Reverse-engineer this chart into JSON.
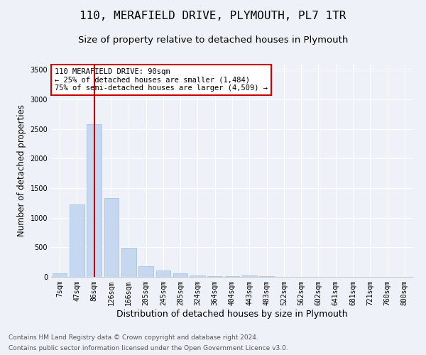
{
  "title_line1": "110, MERAFIELD DRIVE, PLYMOUTH, PL7 1TR",
  "title_line2": "Size of property relative to detached houses in Plymouth",
  "xlabel": "Distribution of detached houses by size in Plymouth",
  "ylabel": "Number of detached properties",
  "categories": [
    "7sqm",
    "47sqm",
    "86sqm",
    "126sqm",
    "166sqm",
    "205sqm",
    "245sqm",
    "285sqm",
    "324sqm",
    "364sqm",
    "404sqm",
    "443sqm",
    "483sqm",
    "522sqm",
    "562sqm",
    "602sqm",
    "641sqm",
    "681sqm",
    "721sqm",
    "760sqm",
    "800sqm"
  ],
  "values": [
    60,
    1230,
    2580,
    1330,
    495,
    175,
    110,
    55,
    25,
    15,
    12,
    20,
    18,
    0,
    0,
    0,
    0,
    0,
    0,
    0,
    0
  ],
  "bar_color": "#c5d8f0",
  "bar_edge_color": "#9abcd8",
  "vline_x": 2,
  "vline_color": "#cc0000",
  "annotation_text": "110 MERAFIELD DRIVE: 90sqm\n← 25% of detached houses are smaller (1,484)\n75% of semi-detached houses are larger (4,509) →",
  "annotation_box_color": "#ffffff",
  "annotation_box_edge_color": "#cc0000",
  "ylim": [
    0,
    3600
  ],
  "yticks": [
    0,
    500,
    1000,
    1500,
    2000,
    2500,
    3000,
    3500
  ],
  "background_color": "#eef2f8",
  "plot_bg_color": "#eef2f8",
  "footer_line1": "Contains HM Land Registry data © Crown copyright and database right 2024.",
  "footer_line2": "Contains public sector information licensed under the Open Government Licence v3.0.",
  "title_fontsize": 11.5,
  "subtitle_fontsize": 9.5,
  "xlabel_fontsize": 9,
  "ylabel_fontsize": 8.5,
  "tick_fontsize": 7,
  "footer_fontsize": 6.5,
  "annotation_fontsize": 7.5
}
